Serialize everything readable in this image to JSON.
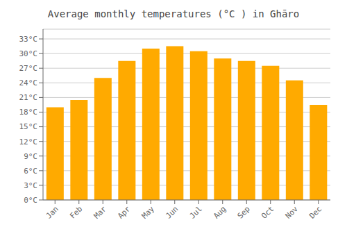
{
  "chart_data": {
    "type": "bar",
    "title": "Average monthly temperatures (°C ) in Ghāro",
    "categories": [
      "Jan",
      "Feb",
      "Mar",
      "Apr",
      "May",
      "Jun",
      "Jul",
      "Aug",
      "Sep",
      "Oct",
      "Nov",
      "Dec"
    ],
    "values": [
      19.0,
      20.5,
      25.0,
      28.5,
      31.0,
      31.5,
      30.5,
      29.0,
      28.5,
      27.5,
      24.5,
      19.5
    ],
    "color": "#FFAA00",
    "ylim": [
      0,
      35
    ],
    "yticks": [
      {
        "value": 0,
        "label": "0°C"
      },
      {
        "value": 3,
        "label": "3°C"
      },
      {
        "value": 6,
        "label": "6°C"
      },
      {
        "value": 9,
        "label": "9°C"
      },
      {
        "value": 12,
        "label": "12°C"
      },
      {
        "value": 15,
        "label": "15°C"
      },
      {
        "value": 18,
        "label": "18°C"
      },
      {
        "value": 21,
        "label": "21°C"
      },
      {
        "value": 24,
        "label": "24°C"
      },
      {
        "value": 27,
        "label": "27°C"
      },
      {
        "value": 30,
        "label": "30°C"
      },
      {
        "value": 33,
        "label": "33°C"
      }
    ],
    "grid": true
  }
}
